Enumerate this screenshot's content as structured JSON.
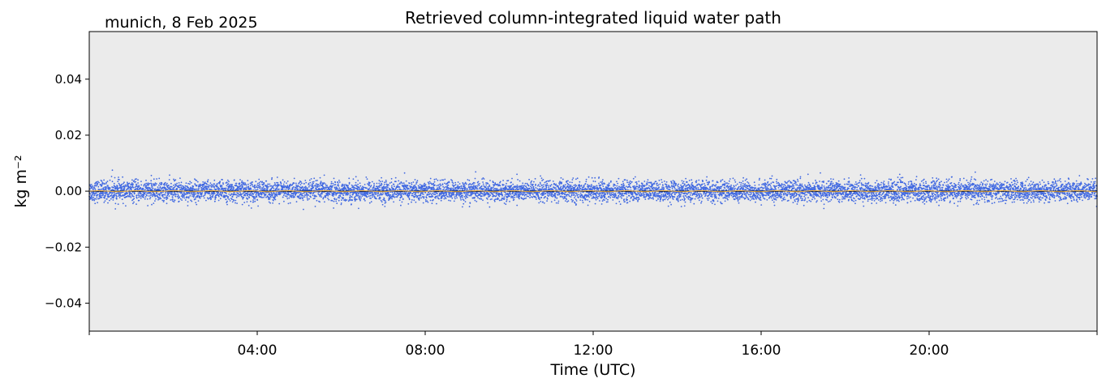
{
  "chart_data": {
    "type": "scatter",
    "title": "Retrieved column-integrated liquid water path",
    "subtitle": "munich, 8 Feb 2025",
    "xlabel": "Time (UTC)",
    "ylabel": "kg m⁻²",
    "xlim_hours": [
      0,
      24
    ],
    "ylim": [
      -0.05,
      0.057
    ],
    "x_ticks": [
      {
        "hour": 4,
        "label": "04:00"
      },
      {
        "hour": 8,
        "label": "08:00"
      },
      {
        "hour": 12,
        "label": "12:00"
      },
      {
        "hour": 16,
        "label": "16:00"
      },
      {
        "hour": 20,
        "label": "20:00"
      }
    ],
    "y_ticks": [
      {
        "value": 0.04,
        "label": "0.04"
      },
      {
        "value": 0.02,
        "label": "0.02"
      },
      {
        "value": 0.0,
        "label": "0.00"
      },
      {
        "value": -0.02,
        "label": "−0.02"
      },
      {
        "value": -0.04,
        "label": "−0.04"
      }
    ],
    "scatter_series": {
      "color": "#4169e1",
      "center": 0.0,
      "typical_spread": 0.004,
      "max_observed": 0.0075,
      "min_observed": -0.0065
    },
    "mean_line": {
      "color": "#f0b040",
      "value": 0.0
    },
    "zero_line": {
      "color": "#000000",
      "value": 0.0
    },
    "background_color": "#ebebeb",
    "grid": false
  }
}
